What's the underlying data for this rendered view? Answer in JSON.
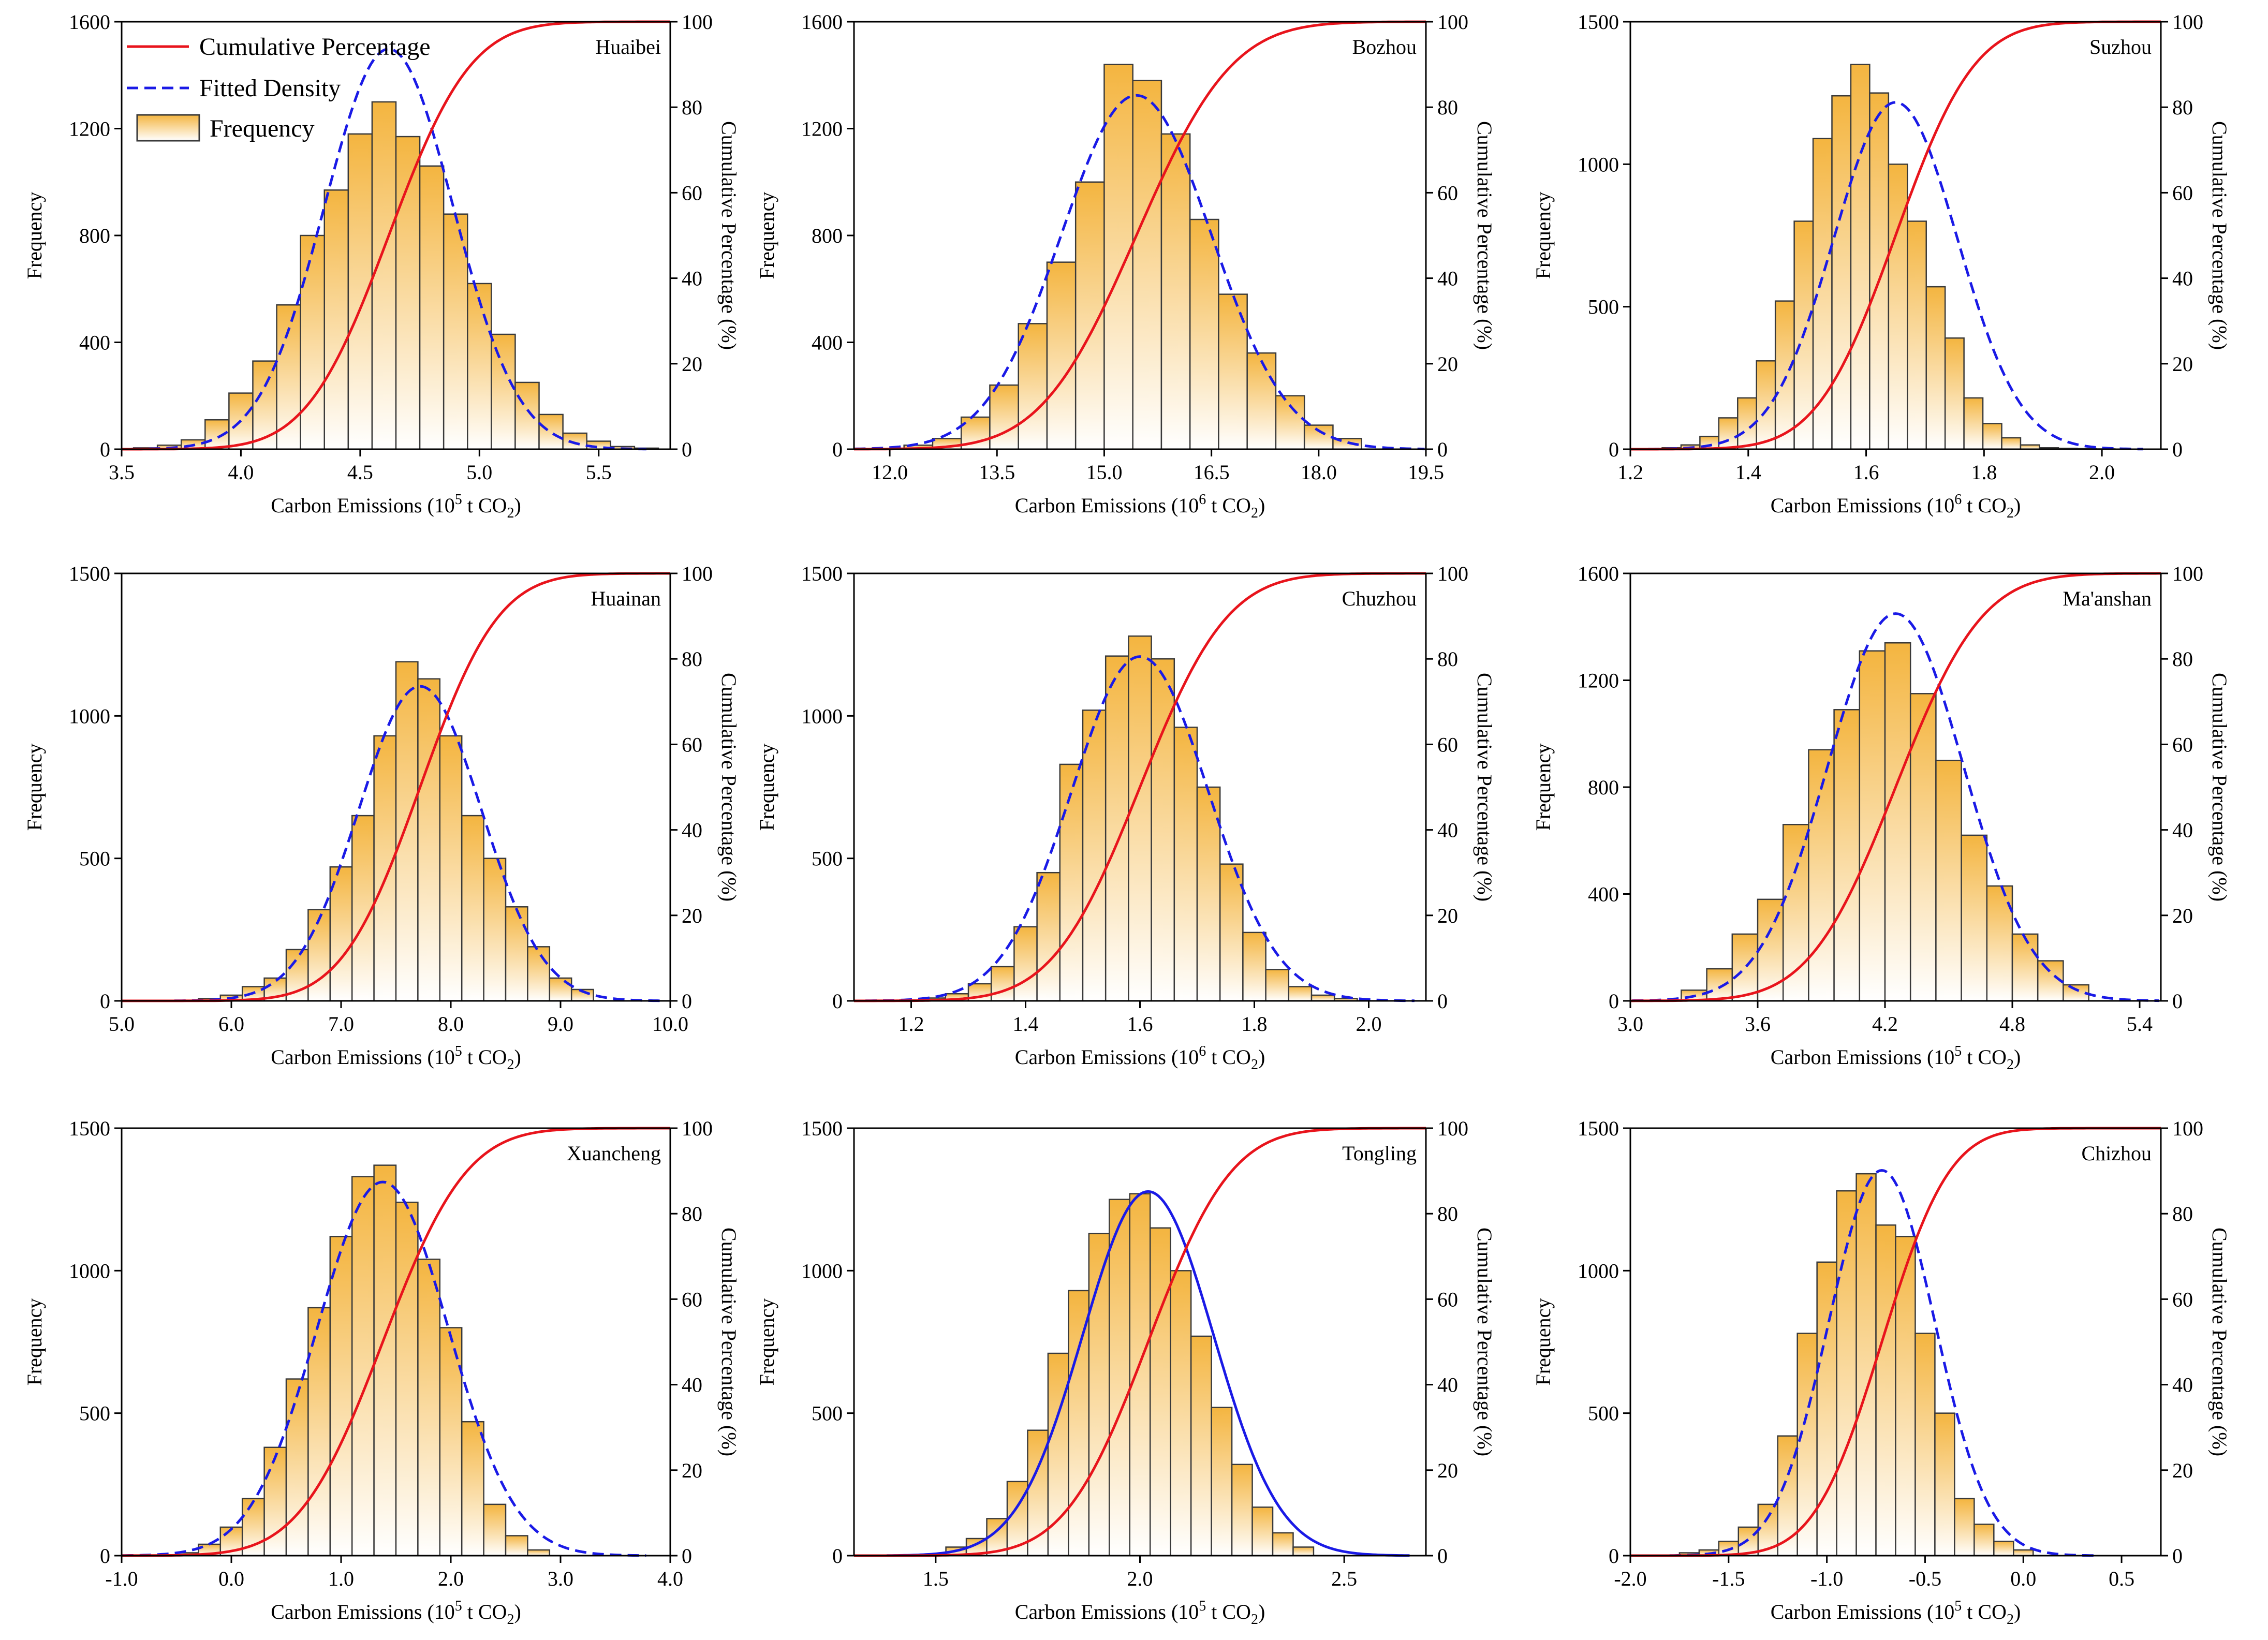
{
  "figure": {
    "legend": {
      "cumulative": "Cumulative Percentage",
      "density": "Fitted Density",
      "frequency": "Frequency"
    },
    "colors": {
      "cumulative": "#e8141c",
      "density": "#1a1ae6",
      "bar_top": "#f4b540",
      "bar_bottom": "#ffffff",
      "bar_edge": "#3a3a3a"
    }
  },
  "chart_data": [
    {
      "type": "bar",
      "title": "Huaibei",
      "xlabel": "Carbon Emissions (10",
      "xunit_exp": "5",
      "xunit_tail": " t CO",
      "xunit_sub": "2",
      "xlabel_close": ")",
      "ylabel": "Frequency",
      "y2label": "Cumulative Percentage (%)",
      "xlim": [
        3.5,
        5.8
      ],
      "xticks": [
        3.5,
        4.0,
        4.5,
        5.0,
        5.5
      ],
      "xtick_labels": [
        "3.5",
        "4.0",
        "4.5",
        "5.0",
        "5.5"
      ],
      "ylim": [
        0,
        1600
      ],
      "yticks": [
        0,
        400,
        800,
        1200,
        1600
      ],
      "ytick_labels": [
        "0",
        "400",
        "800",
        "1200",
        "1600"
      ],
      "y2ticks": [
        0,
        20,
        40,
        60,
        80,
        100
      ],
      "y2tick_labels": [
        "0",
        "20",
        "40",
        "60",
        "80",
        "100"
      ],
      "bin_width": 0.1,
      "bins": [
        3.6,
        3.7,
        3.8,
        3.9,
        4.0,
        4.1,
        4.2,
        4.3,
        4.4,
        4.5,
        4.6,
        4.7,
        4.8,
        4.9,
        5.0,
        5.1,
        5.2,
        5.3,
        5.4,
        5.5,
        5.6,
        5.7
      ],
      "values": [
        5,
        15,
        35,
        110,
        210,
        330,
        540,
        800,
        970,
        1180,
        1300,
        1170,
        1060,
        880,
        620,
        430,
        250,
        130,
        60,
        30,
        10,
        4
      ],
      "mean": 4.62,
      "sd": 0.27,
      "density_style": "dashed",
      "show_legend": true
    },
    {
      "type": "bar",
      "title": "Bozhou",
      "xlabel": "Carbon Emissions (10",
      "xunit_exp": "6",
      "xunit_tail": " t CO",
      "xunit_sub": "2",
      "xlabel_close": ")",
      "ylabel": "Frequency",
      "y2label": "Cumulative Percentage (%)",
      "xlim": [
        11.5,
        19.5
      ],
      "xticks": [
        12.0,
        13.5,
        15.0,
        16.5,
        18.0,
        19.5
      ],
      "xtick_labels": [
        "12.0",
        "13.5",
        "15.0",
        "16.5",
        "18.0",
        "19.5"
      ],
      "ylim": [
        0,
        1600
      ],
      "yticks": [
        0,
        400,
        800,
        1200,
        1600
      ],
      "ytick_labels": [
        "0",
        "400",
        "800",
        "1200",
        "1600"
      ],
      "y2ticks": [
        0,
        20,
        40,
        60,
        80,
        100
      ],
      "y2tick_labels": [
        "0",
        "20",
        "40",
        "60",
        "80",
        "100"
      ],
      "bin_width": 0.4,
      "bins": [
        12.4,
        12.8,
        13.2,
        13.6,
        14.0,
        14.4,
        14.8,
        15.2,
        15.6,
        16.0,
        16.4,
        16.8,
        17.2,
        17.6,
        18.0,
        18.4
      ],
      "values": [
        15,
        40,
        120,
        240,
        470,
        700,
        1000,
        1440,
        1380,
        1180,
        860,
        580,
        360,
        200,
        90,
        40
      ],
      "mean": 15.45,
      "sd": 1.05,
      "density_style": "dashed",
      "show_legend": false
    },
    {
      "type": "bar",
      "title": "Suzhou",
      "xlabel": "Carbon Emissions (10",
      "xunit_exp": "6",
      "xunit_tail": " t CO",
      "xunit_sub": "2",
      "xlabel_close": ")",
      "ylabel": "Frequency",
      "y2label": "Cumulative Percentage (%)",
      "xlim": [
        1.2,
        2.1
      ],
      "xticks": [
        1.2,
        1.4,
        1.6,
        1.8,
        2.0
      ],
      "xtick_labels": [
        "1.2",
        "1.4",
        "1.6",
        "1.8",
        "2.0"
      ],
      "ylim": [
        0,
        1500
      ],
      "yticks": [
        0,
        500,
        1000,
        1500
      ],
      "ytick_labels": [
        "0",
        "500",
        "1000",
        "1500"
      ],
      "y2ticks": [
        0,
        20,
        40,
        60,
        80,
        100
      ],
      "y2tick_labels": [
        "0",
        "20",
        "40",
        "60",
        "80",
        "100"
      ],
      "bin_width": 0.032,
      "bins": [
        1.27,
        1.302,
        1.334,
        1.366,
        1.398,
        1.43,
        1.462,
        1.494,
        1.526,
        1.558,
        1.59,
        1.622,
        1.654,
        1.686,
        1.718,
        1.75,
        1.782,
        1.814,
        1.846,
        1.878,
        1.91,
        1.942,
        1.974,
        2.006
      ],
      "values": [
        5,
        15,
        45,
        110,
        180,
        310,
        520,
        800,
        1090,
        1240,
        1350,
        1250,
        1000,
        800,
        570,
        390,
        180,
        90,
        40,
        15,
        5,
        3,
        2,
        1
      ],
      "mean": 1.65,
      "sd": 0.105,
      "density_style": "dashed",
      "show_legend": false
    },
    {
      "type": "bar",
      "title": "Huainan",
      "xlabel": "Carbon Emissions (10",
      "xunit_exp": "5",
      "xunit_tail": " t CO",
      "xunit_sub": "2",
      "xlabel_close": ")",
      "ylabel": "Frequency",
      "y2label": "Cumulative Percentage (%)",
      "xlim": [
        5.0,
        10.0
      ],
      "xticks": [
        5.0,
        6.0,
        7.0,
        8.0,
        9.0,
        10.0
      ],
      "xtick_labels": [
        "5.0",
        "6.0",
        "7.0",
        "8.0",
        "9.0",
        "10.0"
      ],
      "ylim": [
        0,
        1500
      ],
      "yticks": [
        0,
        500,
        1000,
        1500
      ],
      "ytick_labels": [
        "0",
        "500",
        "1000",
        "1500"
      ],
      "y2ticks": [
        0,
        20,
        40,
        60,
        80,
        100
      ],
      "y2tick_labels": [
        "0",
        "20",
        "40",
        "60",
        "80",
        "100"
      ],
      "bin_width": 0.2,
      "bins": [
        5.8,
        6.0,
        6.2,
        6.4,
        6.6,
        6.8,
        7.0,
        7.2,
        7.4,
        7.6,
        7.8,
        8.0,
        8.2,
        8.4,
        8.6,
        8.8,
        9.0,
        9.2
      ],
      "values": [
        8,
        20,
        50,
        80,
        180,
        320,
        470,
        650,
        930,
        1190,
        1130,
        930,
        650,
        500,
        330,
        190,
        80,
        40
      ],
      "mean": 7.72,
      "sd": 0.56,
      "density_style": "dashed",
      "show_legend": false
    },
    {
      "type": "bar",
      "title": "Chuzhou",
      "xlabel": "Carbon Emissions (10",
      "xunit_exp": "6",
      "xunit_tail": " t CO",
      "xunit_sub": "2",
      "xlabel_close": ")",
      "ylabel": "Frequency",
      "y2label": "Cumulative Percentage (%)",
      "xlim": [
        1.1,
        2.1
      ],
      "xticks": [
        1.2,
        1.4,
        1.6,
        1.8,
        2.0
      ],
      "xtick_labels": [
        "1.2",
        "1.4",
        "1.6",
        "1.8",
        "2.0"
      ],
      "ylim": [
        0,
        1500
      ],
      "yticks": [
        0,
        500,
        1000,
        1500
      ],
      "ytick_labels": [
        "0",
        "500",
        "1000",
        "1500"
      ],
      "y2ticks": [
        0,
        20,
        40,
        60,
        80,
        100
      ],
      "y2tick_labels": [
        "0",
        "20",
        "40",
        "60",
        "80",
        "100"
      ],
      "bin_width": 0.04,
      "bins": [
        1.2,
        1.24,
        1.28,
        1.32,
        1.36,
        1.4,
        1.44,
        1.48,
        1.52,
        1.56,
        1.6,
        1.64,
        1.68,
        1.72,
        1.76,
        1.8,
        1.84,
        1.88,
        1.92,
        1.96
      ],
      "values": [
        3,
        10,
        25,
        60,
        120,
        260,
        450,
        830,
        1020,
        1210,
        1280,
        1200,
        960,
        750,
        480,
        240,
        110,
        50,
        20,
        8
      ],
      "mean": 1.6,
      "sd": 0.12,
      "density_style": "dashed",
      "show_legend": false
    },
    {
      "type": "bar",
      "title": "Ma'anshan",
      "xlabel": "Carbon Emissions (10",
      "xunit_exp": "5",
      "xunit_tail": " t CO",
      "xunit_sub": "2",
      "xlabel_close": ")",
      "ylabel": "Frequency",
      "y2label": "Cumulative Percentage (%)",
      "xlim": [
        3.0,
        5.5
      ],
      "xticks": [
        3.0,
        3.6,
        4.2,
        4.8,
        5.4
      ],
      "xtick_labels": [
        "3.0",
        "3.6",
        "4.2",
        "4.8",
        "5.4"
      ],
      "ylim": [
        0,
        1600
      ],
      "yticks": [
        0,
        400,
        800,
        1200,
        1600
      ],
      "ytick_labels": [
        "0",
        "400",
        "800",
        "1200",
        "1600"
      ],
      "y2ticks": [
        0,
        20,
        40,
        60,
        80,
        100
      ],
      "y2tick_labels": [
        "0",
        "20",
        "40",
        "60",
        "80",
        "100"
      ],
      "bin_width": 0.12,
      "bins": [
        3.3,
        3.42,
        3.54,
        3.66,
        3.78,
        3.9,
        4.02,
        4.14,
        4.26,
        4.38,
        4.5,
        4.62,
        4.74,
        4.86,
        4.98,
        5.1
      ],
      "values": [
        40,
        120,
        250,
        380,
        660,
        940,
        1090,
        1310,
        1340,
        1150,
        900,
        620,
        430,
        250,
        150,
        60
      ],
      "mean": 4.25,
      "sd": 0.32,
      "density_style": "dashed",
      "show_legend": false
    },
    {
      "type": "bar",
      "title": "Xuancheng",
      "xlabel": "Carbon Emissions (10",
      "xunit_exp": "5",
      "xunit_tail": " t CO",
      "xunit_sub": "2",
      "xlabel_close": ")",
      "ylabel": "Frequency",
      "y2label": "Cumulative Percentage (%)",
      "xlim": [
        -1.0,
        4.0
      ],
      "xticks": [
        -1.0,
        0.0,
        1.0,
        2.0,
        3.0,
        4.0
      ],
      "xtick_labels": [
        "-1.0",
        "0.0",
        "1.0",
        "2.0",
        "3.0",
        "4.0"
      ],
      "ylim": [
        0,
        1500
      ],
      "yticks": [
        0,
        500,
        1000,
        1500
      ],
      "ytick_labels": [
        "0",
        "500",
        "1000",
        "1500"
      ],
      "y2ticks": [
        0,
        20,
        40,
        60,
        80,
        100
      ],
      "y2tick_labels": [
        "0",
        "20",
        "40",
        "60",
        "80",
        "100"
      ],
      "bin_width": 0.2,
      "bins": [
        -0.4,
        -0.2,
        0.0,
        0.2,
        0.4,
        0.6,
        0.8,
        1.0,
        1.2,
        1.4,
        1.6,
        1.8,
        2.0,
        2.2,
        2.4,
        2.6,
        2.8
      ],
      "values": [
        10,
        40,
        100,
        200,
        380,
        620,
        870,
        1120,
        1330,
        1370,
        1240,
        1040,
        800,
        470,
        180,
        70,
        20
      ],
      "mean": 1.38,
      "sd": 0.6,
      "density_style": "dashed",
      "show_legend": false
    },
    {
      "type": "bar",
      "title": "Tongling",
      "xlabel": "Carbon Emissions (10",
      "xunit_exp": "5",
      "xunit_tail": " t CO",
      "xunit_sub": "2",
      "xlabel_close": ")",
      "ylabel": "Frequency",
      "y2label": "Cumulative Percentage (%)",
      "xlim": [
        1.3,
        2.7
      ],
      "xticks": [
        1.5,
        2.0,
        2.5
      ],
      "xtick_labels": [
        "1.5",
        "2.0",
        "2.5"
      ],
      "ylim": [
        0,
        1500
      ],
      "yticks": [
        0,
        500,
        1000,
        1500
      ],
      "ytick_labels": [
        "0",
        "500",
        "1000",
        "1500"
      ],
      "y2ticks": [
        0,
        20,
        40,
        60,
        80,
        100
      ],
      "y2tick_labels": [
        "0",
        "20",
        "40",
        "60",
        "80",
        "100"
      ],
      "bin_width": 0.05,
      "bins": [
        1.55,
        1.6,
        1.65,
        1.7,
        1.75,
        1.8,
        1.85,
        1.9,
        1.95,
        2.0,
        2.05,
        2.1,
        2.15,
        2.2,
        2.25,
        2.3,
        2.35,
        2.4
      ],
      "values": [
        30,
        60,
        130,
        260,
        440,
        710,
        930,
        1130,
        1250,
        1270,
        1150,
        1000,
        770,
        520,
        320,
        170,
        80,
        30
      ],
      "mean": 2.02,
      "sd": 0.16,
      "density_style": "solid",
      "show_legend": false
    },
    {
      "type": "bar",
      "title": "Chizhou",
      "xlabel": "Carbon Emissions (10",
      "xunit_exp": "5",
      "xunit_tail": " t CO",
      "xunit_sub": "2",
      "xlabel_close": ")",
      "ylabel": "Frequency",
      "y2label": "Cumulative Percentage (%)",
      "xlim": [
        -2.0,
        0.7
      ],
      "xticks": [
        -2.0,
        -1.5,
        -1.0,
        -0.5,
        0.0,
        0.5
      ],
      "xtick_labels": [
        "-2.0",
        "-1.5",
        "-1.0",
        "-0.5",
        "0.0",
        "0.5"
      ],
      "ylim": [
        0,
        1500
      ],
      "yticks": [
        0,
        500,
        1000,
        1500
      ],
      "ytick_labels": [
        "0",
        "500",
        "1000",
        "1500"
      ],
      "y2ticks": [
        0,
        20,
        40,
        60,
        80,
        100
      ],
      "y2tick_labels": [
        "0",
        "20",
        "40",
        "60",
        "80",
        "100"
      ],
      "bin_width": 0.1,
      "bins": [
        -1.7,
        -1.6,
        -1.5,
        -1.4,
        -1.3,
        -1.2,
        -1.1,
        -1.0,
        -0.9,
        -0.8,
        -0.7,
        -0.6,
        -0.5,
        -0.4,
        -0.3,
        -0.2,
        -0.1,
        0.0
      ],
      "values": [
        10,
        20,
        50,
        100,
        180,
        420,
        780,
        1030,
        1280,
        1340,
        1160,
        1120,
        780,
        500,
        200,
        110,
        50,
        20
      ],
      "mean": -0.72,
      "sd": 0.27,
      "density_style": "dashed",
      "show_legend": false
    }
  ]
}
